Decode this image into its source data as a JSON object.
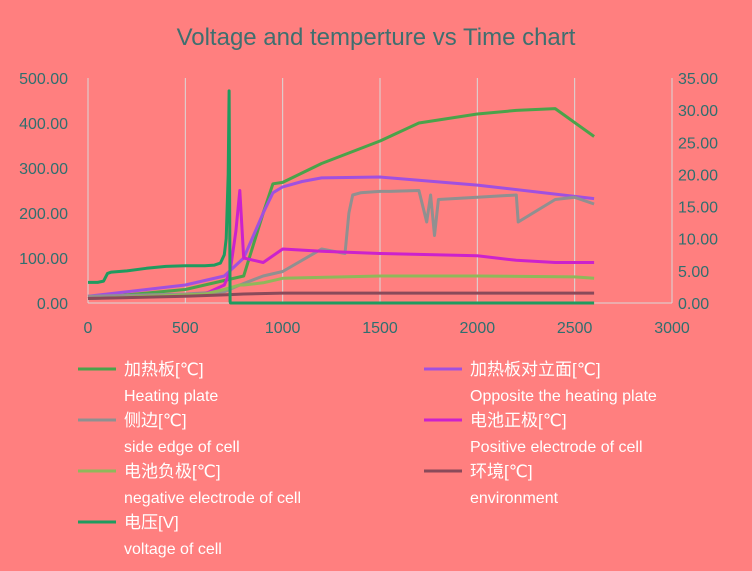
{
  "chart_data": {
    "type": "line",
    "title": "Voltage and temperture vs Time chart",
    "x_axis": {
      "min": 0,
      "max": 3000,
      "ticks": [
        0,
        500,
        1000,
        1500,
        2000,
        2500,
        3000
      ]
    },
    "y_left": {
      "min": 0,
      "max": 500,
      "ticks": [
        "0.00",
        "100.00",
        "200.00",
        "300.00",
        "400.00",
        "500.00"
      ]
    },
    "y_right": {
      "min": 0,
      "max": 35,
      "ticks": [
        "0.00",
        "5.00",
        "10.00",
        "15.00",
        "20.00",
        "25.00",
        "30.00",
        "35.00"
      ]
    },
    "grid": "vertical",
    "legend_position": "bottom",
    "series": [
      {
        "name": "加热板[℃]",
        "subname": "Heating plate",
        "color": "#4aa34a",
        "axis": "left",
        "x": [
          0,
          500,
          700,
          800,
          900,
          950,
          1000,
          1200,
          1500,
          1700,
          2000,
          2200,
          2400,
          2600
        ],
        "y": [
          10,
          30,
          50,
          60,
          200,
          265,
          268,
          310,
          360,
          400,
          420,
          428,
          432,
          370
        ]
      },
      {
        "name": "加热板对立面[℃]",
        "subname": "Opposite the heating plate",
        "color": "#a050e0",
        "axis": "left",
        "x": [
          0,
          500,
          700,
          800,
          900,
          950,
          1000,
          1100,
          1200,
          1500,
          2000,
          2500,
          2600
        ],
        "y": [
          15,
          40,
          60,
          100,
          200,
          245,
          258,
          270,
          278,
          280,
          262,
          237,
          232
        ]
      },
      {
        "name": "侧边[℃]",
        "subname": "side edge of cell",
        "color": "#909090",
        "axis": "left",
        "x": [
          0,
          500,
          700,
          780,
          900,
          1000,
          1200,
          1320,
          1340,
          1360,
          1400,
          1500,
          1550,
          1700,
          1740,
          1760,
          1780,
          1800,
          2000,
          2200,
          2210,
          2400,
          2500,
          2600
        ],
        "y": [
          15,
          20,
          25,
          40,
          60,
          70,
          120,
          110,
          200,
          240,
          245,
          248,
          248,
          250,
          180,
          240,
          150,
          230,
          235,
          240,
          180,
          230,
          235,
          220
        ]
      },
      {
        "name": "电池正极[℃]",
        "subname": "Positive electrode of cell",
        "color": "#cc22cc",
        "axis": "left",
        "x": [
          0,
          600,
          700,
          730,
          760,
          780,
          800,
          900,
          1000,
          1200,
          1500,
          2000,
          2200,
          2400,
          2600
        ],
        "y": [
          10,
          20,
          40,
          70,
          160,
          250,
          100,
          90,
          120,
          115,
          110,
          105,
          95,
          90,
          90
        ]
      },
      {
        "name": "电池负极[℃]",
        "subname": "negative electrode of cell",
        "color": "#8fb85a",
        "axis": "left",
        "x": [
          0,
          600,
          700,
          780,
          800,
          900,
          1000,
          1500,
          2000,
          2500,
          2600
        ],
        "y": [
          10,
          20,
          30,
          40,
          40,
          45,
          55,
          60,
          60,
          58,
          55
        ]
      },
      {
        "name": "环境[℃]",
        "subname": "environment",
        "color": "#8a4a5a",
        "axis": "left",
        "x": [
          0,
          500,
          700,
          800,
          1000,
          1500,
          2000,
          2500,
          2600
        ],
        "y": [
          10,
          15,
          18,
          20,
          22,
          22,
          22,
          22,
          22
        ]
      },
      {
        "name": "电压[V]",
        "subname": "voltage of cell",
        "color": "#1f9b5f",
        "axis": "right",
        "x": [
          0,
          50,
          80,
          100,
          120,
          200,
          300,
          400,
          500,
          600,
          650,
          680,
          700,
          710,
          720,
          725,
          730,
          732,
          740,
          800,
          1000,
          1500,
          2000,
          2500,
          2600
        ],
        "y": [
          3.2,
          3.2,
          3.4,
          4.6,
          4.8,
          5.0,
          5.4,
          5.7,
          5.8,
          5.8,
          5.9,
          6.2,
          7.5,
          10.0,
          20.0,
          33.0,
          0.2,
          0.0,
          0.0,
          0.0,
          0.0,
          0.0,
          0.0,
          0.0,
          0.0
        ]
      }
    ]
  }
}
